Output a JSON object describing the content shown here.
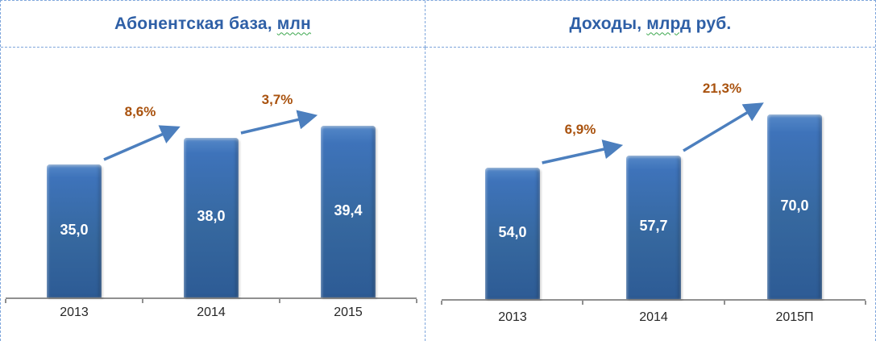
{
  "colors": {
    "title_text": "#2E5FA6",
    "bar_fill": "#3A6FB8",
    "bar_fill_dark": "#2B5A94",
    "bar_value_text": "#FFFFFF",
    "growth_label": "#A9520E",
    "arrow": "#4C7FBE",
    "axis_line": "#909090",
    "category_text": "#262626",
    "table_border": "#7EA6DC",
    "spellcheck_squiggle": "#3AA64C"
  },
  "chart_data": [
    {
      "type": "bar",
      "title": "Абонентская база, млн",
      "title_parts": {
        "pre": "Абонентская база, ",
        "squiggle": "млн",
        "post": ""
      },
      "categories": [
        "2013",
        "2014",
        "2015"
      ],
      "values": [
        35.0,
        38.0,
        39.4
      ],
      "value_labels": [
        "35,0",
        "38,0",
        "39,4"
      ],
      "growth_labels": [
        "8,6%",
        "3,7%"
      ],
      "ylim": [
        20,
        42
      ],
      "xlabel": "",
      "ylabel": "",
      "legend": "none",
      "grid": false
    },
    {
      "type": "bar",
      "title": "Доходы, млрд руб.",
      "title_parts": {
        "pre": "Доходы, ",
        "squiggle": "млрд",
        "post": " руб."
      },
      "categories": [
        "2013",
        "2014",
        "2015П"
      ],
      "values": [
        54.0,
        57.7,
        70.0
      ],
      "value_labels": [
        "54,0",
        "57,7",
        "70,0"
      ],
      "growth_labels": [
        "6,9%",
        "21,3%"
      ],
      "ylim": [
        15,
        75
      ],
      "xlabel": "",
      "ylabel": "",
      "legend": "none",
      "grid": false
    }
  ]
}
